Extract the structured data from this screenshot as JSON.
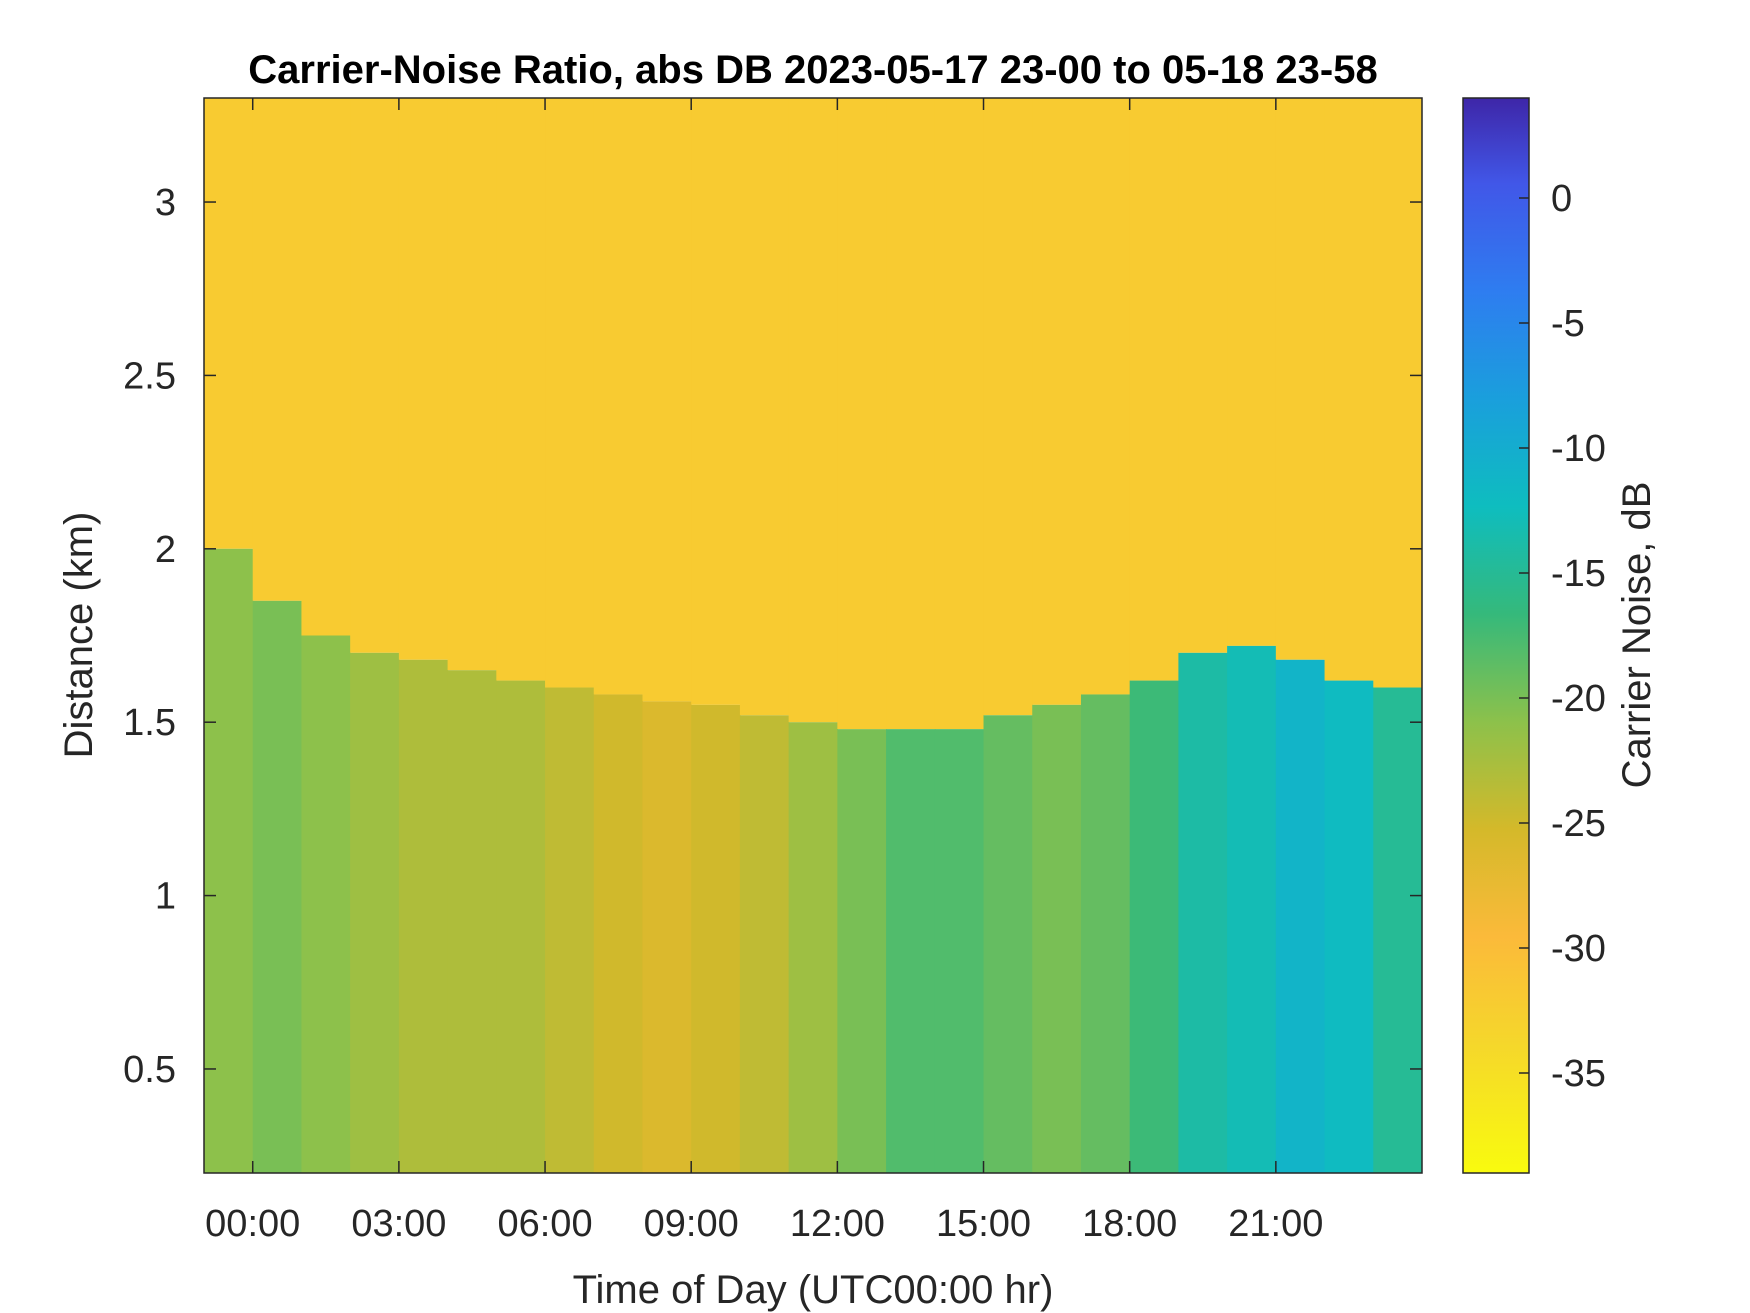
{
  "chart_data": {
    "type": "heatmap",
    "title": "Carrier-Noise Ratio, abs DB 2023-05-17 23-00 to 05-18 23-58",
    "xlabel": "Time of Day (UTC00:00 hr)",
    "ylabel": "Distance (km)",
    "colorbar_label": "Carrier Noise, dB",
    "colormap": "parula-reversed",
    "xlim": [
      -1,
      24
    ],
    "ylim": [
      0.2,
      3.3
    ],
    "clim": [
      -39,
      4
    ],
    "x_ticks": [
      0,
      3,
      6,
      9,
      12,
      15,
      18,
      21
    ],
    "x_tick_labels": [
      "00:00",
      "03:00",
      "06:00",
      "09:00",
      "12:00",
      "15:00",
      "18:00",
      "21:00"
    ],
    "y_ticks": [
      0.5,
      1,
      1.5,
      2,
      2.5,
      3
    ],
    "y_tick_labels": [
      "0.5",
      "1",
      "1.5",
      "2",
      "2.5",
      "3"
    ],
    "colorbar_ticks": [
      0,
      -5,
      -10,
      -15,
      -20,
      -25,
      -30,
      -35
    ],
    "colorbar_tick_labels": [
      "0",
      "-5",
      "-10",
      "-15",
      "-20",
      "-25",
      "-30",
      "-35"
    ],
    "boundary_times": [
      -1,
      0,
      1,
      2,
      3,
      4,
      5,
      6,
      7,
      8,
      9,
      10,
      11,
      12,
      13,
      14,
      15,
      16,
      17,
      18,
      19,
      20,
      21,
      22,
      23,
      24
    ],
    "boundary_distance_km": [
      2.0,
      1.85,
      1.75,
      1.7,
      1.68,
      1.65,
      1.62,
      1.6,
      1.58,
      1.56,
      1.55,
      1.52,
      1.5,
      1.48,
      1.48,
      1.48,
      1.52,
      1.55,
      1.58,
      1.62,
      1.7,
      1.72,
      1.68,
      1.62,
      1.6,
      1.6
    ],
    "above_boundary_db": -32,
    "below_boundary_db": [
      -21,
      -20,
      -21,
      -22,
      -23,
      -23,
      -23,
      -24,
      -25,
      -26,
      -25,
      -24,
      -22,
      -20,
      -18,
      -18,
      -19,
      -20,
      -19,
      -17,
      -14,
      -13,
      -11,
      -12,
      -15,
      -16
    ]
  }
}
